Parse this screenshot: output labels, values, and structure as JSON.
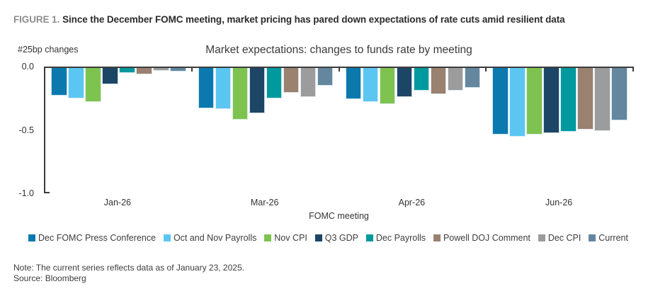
{
  "figure": {
    "label": "FIGURE 1.",
    "title": "Since the December FOMC meeting, market pricing has pared down expectations of rate cuts amid resilient data"
  },
  "chart_data": {
    "type": "bar",
    "title": "Market expectations: changes to funds rate by meeting",
    "y_unit_label": "#25bp changes",
    "xlabel": "FOMC meeting",
    "ylabel": "",
    "ylim": [
      -1.0,
      0.0
    ],
    "yticks": [
      0.0,
      -0.5,
      -1.0
    ],
    "ytick_labels": [
      "0.0",
      "-0.5",
      "-1.0"
    ],
    "grid": false,
    "legend_position": "bottom",
    "categories": [
      "Jan-26",
      "Mar-26",
      "Apr-26",
      "Jun-26"
    ],
    "series": [
      {
        "name": "Dec FOMC Press Conference",
        "color": "#0b79ae",
        "values": [
          -0.22,
          -0.32,
          -0.25,
          -0.53
        ]
      },
      {
        "name": "Oct and Nov Payrolls",
        "color": "#5cc6f2",
        "values": [
          -0.24,
          -0.33,
          -0.27,
          -0.55
        ]
      },
      {
        "name": "Nov CPI",
        "color": "#7ec350",
        "values": [
          -0.27,
          -0.41,
          -0.29,
          -0.53
        ]
      },
      {
        "name": "Q3 GDP",
        "color": "#1d4566",
        "values": [
          -0.13,
          -0.36,
          -0.23,
          -0.52
        ]
      },
      {
        "name": "Dec Payrolls",
        "color": "#00999e",
        "values": [
          -0.04,
          -0.24,
          -0.18,
          -0.51
        ]
      },
      {
        "name": "Powell DOJ Comment",
        "color": "#9a8170",
        "values": [
          -0.05,
          -0.2,
          -0.21,
          -0.49
        ]
      },
      {
        "name": "Dec CPI",
        "color": "#9c9c9c",
        "values": [
          -0.02,
          -0.23,
          -0.18,
          -0.5
        ]
      },
      {
        "name": "Current",
        "color": "#64879f",
        "values": [
          -0.03,
          -0.14,
          -0.16,
          -0.42
        ]
      }
    ],
    "axis_color": "#3c3c3c"
  },
  "footer": {
    "note": "Note: The current series reflects data as of January 23, 2025.",
    "source": "Source: Bloomberg"
  }
}
